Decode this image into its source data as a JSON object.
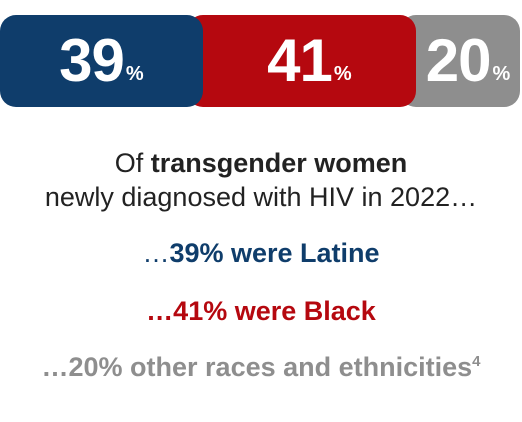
{
  "chart_data": {
    "type": "bar",
    "orientation": "horizontal-stacked",
    "unit": "%",
    "categories": [
      "Latine",
      "Black",
      "Other races and ethnicities"
    ],
    "values": [
      39,
      41,
      20
    ],
    "colors": [
      "#0f3d6b",
      "#b5080f",
      "#8e8e8e"
    ],
    "xlim": [
      0,
      100
    ]
  },
  "segments": [
    {
      "value": "39",
      "suffix": "%"
    },
    {
      "value": "41",
      "suffix": "%"
    },
    {
      "value": "20",
      "suffix": "%"
    }
  ],
  "headline": {
    "prefix": "Of ",
    "emphasis": "transgender women",
    "line2": "newly diagnosed with HIV in 2022…"
  },
  "stats": {
    "latine": {
      "lead": "…",
      "text": "39% were Latine"
    },
    "black": {
      "text": "…41% were Black"
    },
    "other": {
      "text": "…20% other races and ethnicities",
      "footnote": "4"
    }
  }
}
